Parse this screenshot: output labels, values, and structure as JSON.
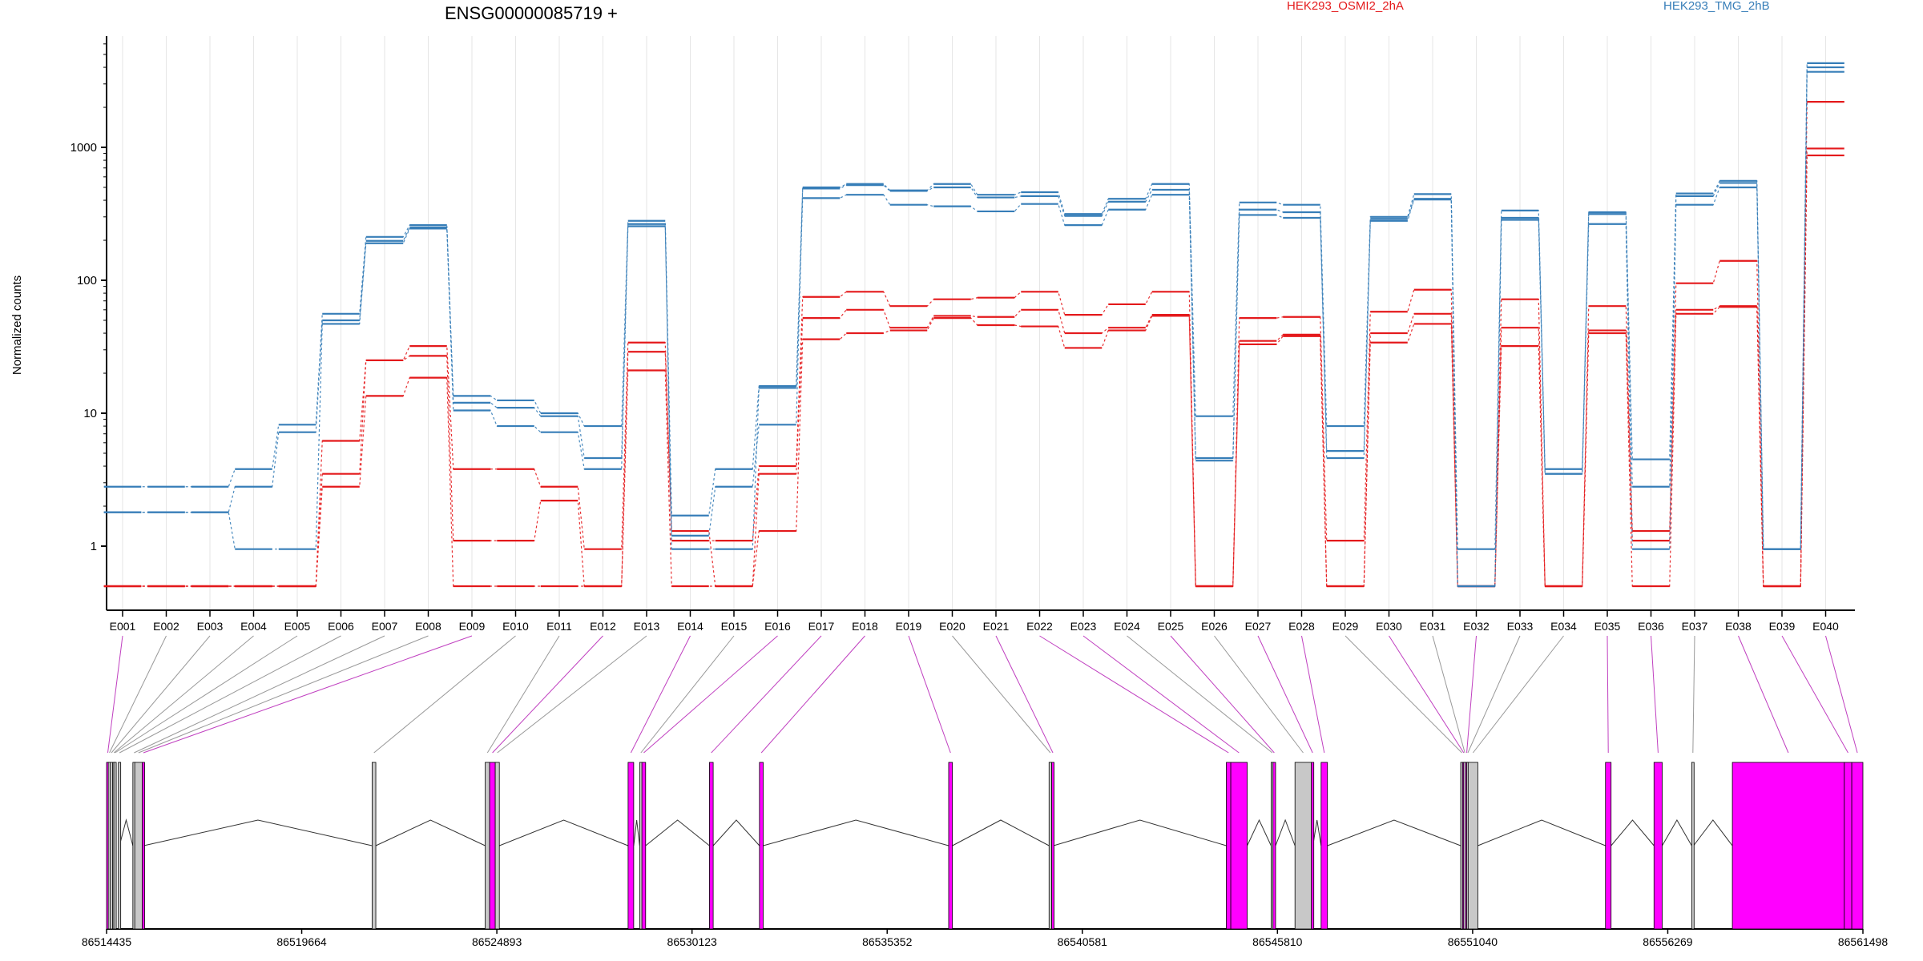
{
  "colors": {
    "condition_a": "#e41a1c",
    "condition_b": "#377eb8",
    "tested_exon": "#ff00ff",
    "untested_exon": "#c8c8c8",
    "grid": "#e6e6e6",
    "intron": "#333333"
  },
  "chart_data": {
    "type": "line",
    "title": "ENSG00000085719 +",
    "ylabel": "Normalized counts",
    "xlabel": "",
    "yscale": "log",
    "ylim": [
      0.5,
      5000
    ],
    "yticks": [
      1,
      10,
      100,
      1000
    ],
    "ytick_labels": [
      "1",
      "10",
      "100",
      "1000"
    ],
    "grid": "vertical",
    "legend": [
      {
        "name": "HEK293_OSMI2_2hA",
        "color": "#e41a1c",
        "position": "top-center"
      },
      {
        "name": "HEK293_TMG_2hB",
        "color": "#377eb8",
        "position": "top-right"
      }
    ],
    "categories": [
      "E001",
      "E002",
      "E003",
      "E004",
      "E005",
      "E006",
      "E007",
      "E008",
      "E009",
      "E010",
      "E011",
      "E012",
      "E013",
      "E014",
      "E015",
      "E016",
      "E017",
      "E018",
      "E019",
      "E020",
      "E021",
      "E022",
      "E023",
      "E024",
      "E025",
      "E026",
      "E027",
      "E028",
      "E029",
      "E030",
      "E031",
      "E032",
      "E033",
      "E034",
      "E035",
      "E036",
      "E037",
      "E038",
      "E039",
      "E040"
    ],
    "series": [
      {
        "group": "HEK293_OSMI2_2hA",
        "values": [
          0.5,
          0.5,
          0.5,
          0.5,
          0.5,
          6.2,
          25,
          32,
          3.8,
          3.8,
          2.8,
          0.95,
          34,
          1.1,
          1.1,
          4,
          75,
          82,
          64,
          72,
          74,
          82,
          55,
          66,
          82,
          0.5,
          52,
          53,
          1.1,
          58,
          85,
          0.5,
          72,
          0.5,
          64,
          1.3,
          95,
          140,
          0.5,
          2200
        ]
      },
      {
        "group": "HEK293_OSMI2_2hA",
        "values": [
          0.5,
          0.5,
          0.5,
          0.5,
          0.5,
          3.5,
          25,
          27,
          1.1,
          1.1,
          2.2,
          0.5,
          29,
          1.3,
          0.5,
          3.5,
          52,
          60,
          44,
          54,
          53,
          60,
          40,
          44,
          55,
          0.5,
          35,
          39,
          0.5,
          40,
          56,
          0.5,
          44,
          0.5,
          42,
          1.1,
          60,
          64,
          0.5,
          980
        ]
      },
      {
        "group": "HEK293_OSMI2_2hA",
        "values": [
          0.5,
          0.5,
          0.5,
          0.5,
          0.5,
          2.8,
          13.5,
          18.5,
          0.5,
          0.5,
          0.5,
          0.5,
          21,
          0.5,
          0.5,
          1.3,
          36,
          40,
          42,
          52,
          46,
          45,
          31,
          42,
          54,
          0.5,
          33,
          38,
          0.5,
          34,
          47,
          0.5,
          32,
          0.5,
          40,
          0.5,
          56,
          63,
          0.5,
          870
        ]
      },
      {
        "group": "HEK293_TMG_2hB",
        "values": [
          2.8,
          2.8,
          2.8,
          3.8,
          8.2,
          56,
          212,
          260,
          13.5,
          12.5,
          10,
          8,
          280,
          1.7,
          3.8,
          16,
          500,
          530,
          475,
          530,
          440,
          460,
          315,
          410,
          530,
          9.5,
          385,
          370,
          8,
          300,
          445,
          0.95,
          335,
          3.8,
          325,
          4.5,
          450,
          560,
          0.95,
          4300
        ]
      },
      {
        "group": "HEK293_TMG_2hB",
        "values": [
          1.8,
          1.8,
          1.8,
          2.8,
          7.2,
          50,
          198,
          250,
          12,
          11,
          9.5,
          4.6,
          265,
          1.2,
          2.8,
          8.2,
          490,
          520,
          470,
          500,
          420,
          430,
          305,
          390,
          480,
          4.6,
          340,
          325,
          5.2,
          290,
          410,
          0.5,
          295,
          3.5,
          315,
          2.8,
          430,
          540,
          0.95,
          4000
        ]
      },
      {
        "group": "HEK293_TMG_2hB",
        "values": [
          1.8,
          1.8,
          1.8,
          0.95,
          0.95,
          47,
          190,
          245,
          10.5,
          8,
          7.2,
          3.8,
          255,
          0.95,
          0.95,
          15.5,
          415,
          440,
          370,
          360,
          330,
          375,
          260,
          340,
          440,
          4.4,
          310,
          295,
          4.6,
          280,
          405,
          0.5,
          285,
          3.5,
          265,
          0.95,
          370,
          500,
          0.95,
          3700
        ]
      }
    ],
    "gene_model": {
      "coordinates": [
        "86514435",
        "86519664",
        "86524893",
        "86530123",
        "86535352",
        "86540581",
        "86545810",
        "86551040",
        "86556269",
        "86561498"
      ],
      "coordinate_values": [
        86514435,
        86519664,
        86524893,
        86530123,
        86535352,
        86540581,
        86545810,
        86551040,
        86556269,
        86561498
      ],
      "features": [
        {
          "exon": "E001",
          "start": 86514435,
          "end": 86514480,
          "tested": true
        },
        {
          "exon": "E002",
          "start": 86514480,
          "end": 86514530,
          "tested": false
        },
        {
          "exon": "E003",
          "start": 86514530,
          "end": 86514600,
          "tested": false
        },
        {
          "exon": "E004",
          "start": 86514600,
          "end": 86514630,
          "tested": false
        },
        {
          "exon": "E005",
          "start": 86514630,
          "end": 86514650,
          "tested": false
        },
        {
          "exon": "E006",
          "start": 86514750,
          "end": 86514780,
          "tested": false
        },
        {
          "exon": "E007",
          "start": 86515140,
          "end": 86515190,
          "tested": false
        },
        {
          "exon": "E008",
          "start": 86515190,
          "end": 86515390,
          "tested": false
        },
        {
          "exon": "E009",
          "start": 86515390,
          "end": 86515430,
          "tested": true
        },
        {
          "exon": "E010",
          "start": 86521550,
          "end": 86521650,
          "tested": false
        },
        {
          "exon": "E011",
          "start": 86524580,
          "end": 86524700,
          "tested": false
        },
        {
          "exon": "E012",
          "start": 86524700,
          "end": 86524850,
          "tested": true
        },
        {
          "exon": "E013",
          "start": 86524850,
          "end": 86524960,
          "tested": false
        },
        {
          "exon": "E014",
          "start": 86528410,
          "end": 86528560,
          "tested": true
        },
        {
          "exon": "E015",
          "start": 86528720,
          "end": 86528780,
          "tested": false
        },
        {
          "exon": "E016",
          "start": 86528780,
          "end": 86528880,
          "tested": true
        },
        {
          "exon": "E017",
          "start": 86530590,
          "end": 86530690,
          "tested": true
        },
        {
          "exon": "E018",
          "start": 86531930,
          "end": 86532030,
          "tested": true
        },
        {
          "exon": "E019",
          "start": 86537000,
          "end": 86537100,
          "tested": true
        },
        {
          "exon": "E020",
          "start": 86539690,
          "end": 86539760,
          "tested": false
        },
        {
          "exon": "E021",
          "start": 86539760,
          "end": 86539810,
          "tested": true
        },
        {
          "exon": "E022",
          "start": 86544440,
          "end": 86544560,
          "tested": true
        },
        {
          "exon": "E023",
          "start": 86544560,
          "end": 86545000,
          "tested": true
        },
        {
          "exon": "E024",
          "start": 86545640,
          "end": 86545690,
          "tested": false
        },
        {
          "exon": "E025",
          "start": 86545690,
          "end": 86545760,
          "tested": true
        },
        {
          "exon": "E026",
          "start": 86546280,
          "end": 86546720,
          "tested": false
        },
        {
          "exon": "E027",
          "start": 86546720,
          "end": 86546760,
          "tested": true
        },
        {
          "exon": "E028",
          "start": 86546980,
          "end": 86547150,
          "tested": true
        },
        {
          "exon": "E029",
          "start": 86550720,
          "end": 86550770,
          "tested": false
        },
        {
          "exon": "E030",
          "start": 86550770,
          "end": 86550800,
          "tested": true
        },
        {
          "exon": "E031",
          "start": 86550800,
          "end": 86550850,
          "tested": false
        },
        {
          "exon": "E032",
          "start": 86550850,
          "end": 86550880,
          "tested": true
        },
        {
          "exon": "E033",
          "start": 86550880,
          "end": 86550920,
          "tested": false
        },
        {
          "exon": "E034",
          "start": 86550920,
          "end": 86551180,
          "tested": false
        },
        {
          "exon": "E035",
          "start": 86554600,
          "end": 86554750,
          "tested": true
        },
        {
          "exon": "E036",
          "start": 86555900,
          "end": 86556120,
          "tested": true
        },
        {
          "exon": "E037",
          "start": 86556910,
          "end": 86556960,
          "tested": false
        },
        {
          "exon": "E038",
          "start": 86558000,
          "end": 86561000,
          "tested": true
        },
        {
          "exon": "E039",
          "start": 86561000,
          "end": 86561200,
          "tested": true
        },
        {
          "exon": "E040",
          "start": 86561200,
          "end": 86561498,
          "tested": true
        }
      ]
    }
  }
}
